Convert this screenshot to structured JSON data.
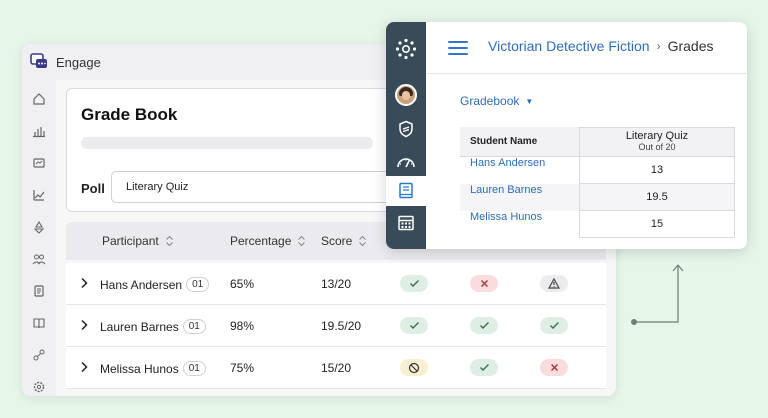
{
  "engage": {
    "app_name": "Engage",
    "title": "Grade Book",
    "poll_label": "Poll",
    "poll_value": "Literary Quiz",
    "columns": {
      "participant": "Participant",
      "percentage": "Percentage",
      "score": "Score"
    },
    "rows": [
      {
        "name": "Hans Andersen",
        "badge": "01",
        "percentage": "65%",
        "score": "13/20",
        "status": [
          "check",
          "cross",
          "warning"
        ]
      },
      {
        "name": "Lauren Barnes",
        "badge": "01",
        "percentage": "98%",
        "score": "19.5/20",
        "status": [
          "check",
          "check",
          "check"
        ]
      },
      {
        "name": "Melissa Hunos",
        "badge": "01",
        "percentage": "75%",
        "score": "15/20",
        "status": [
          "no-entry",
          "check",
          "cross"
        ]
      }
    ],
    "status_colors": {
      "check": "#dfeee4",
      "cross": "#fadcdc",
      "warning": "#ececef",
      "no-entry": "#fbefd2"
    }
  },
  "canvas": {
    "breadcrumb_course": "Victorian Detective Fiction",
    "breadcrumb_page": "Grades",
    "gradebook_menu": "Gradebook",
    "grid": {
      "student_header": "Student Name",
      "assignment": "Literary Quiz",
      "assignment_sub": "Out of 20",
      "rows": [
        {
          "student": "Hans Andersen",
          "grade": "13"
        },
        {
          "student": "Lauren Barnes",
          "grade": "19.5"
        },
        {
          "student": "Melissa Hunos",
          "grade": "15"
        }
      ]
    },
    "nav_icons": [
      "canvas-logo-icon",
      "account-avatar",
      "shield-icon",
      "dashboard-icon",
      "courses-icon",
      "calendar-icon"
    ],
    "accent_color": "#2d6db5",
    "nav_color": "#394b58"
  }
}
